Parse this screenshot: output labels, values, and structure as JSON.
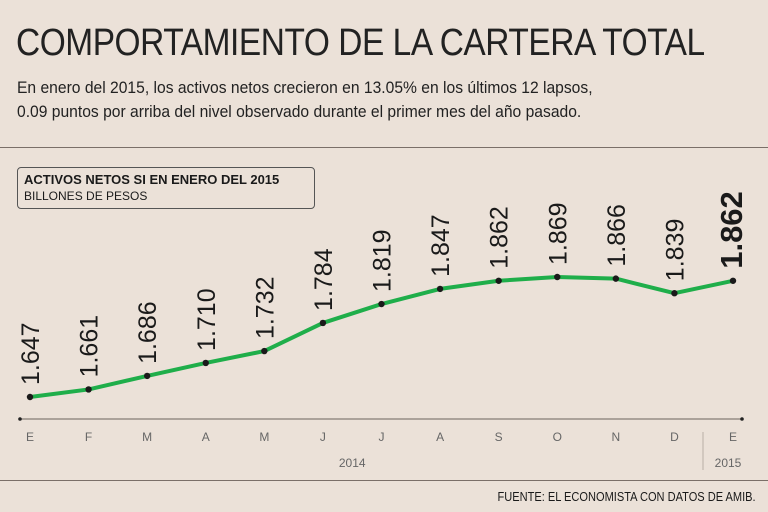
{
  "title": "COMPORTAMIENTO DE LA CARTERA TOTAL",
  "subtitle_lines": [
    "En enero del 2015, los activos netos crecieron en 13.05% en los últimos 12 lapsos,",
    "0.09 puntos por arriba del nivel observado durante el primer mes del año pasado."
  ],
  "source": "FUENTE: EL ECONOMISTA CON DATOS DE AMIB.",
  "colors": {
    "line": "#1fae4a",
    "background": "#ebe1d8",
    "points": "#1a1a1a"
  },
  "chart_data": {
    "type": "line",
    "title": "ACTIVOS NETOS SI EN ENERO DEL 2015",
    "ylabel": "BILLONES DE PESOS",
    "categories": [
      "E",
      "F",
      "M",
      "A",
      "M",
      "J",
      "J",
      "A",
      "S",
      "O",
      "N",
      "D",
      "E"
    ],
    "values": [
      1.647,
      1.661,
      1.686,
      1.71,
      1.732,
      1.784,
      1.819,
      1.847,
      1.862,
      1.869,
      1.866,
      1.839,
      1.862
    ],
    "labels": [
      "1.647",
      "1.661",
      "1.686",
      "1.710",
      "1.732",
      "1.784",
      "1.819",
      "1.847",
      "1.862",
      "1.869",
      "1.866",
      "1.839",
      "1.862"
    ],
    "year_groups": [
      {
        "label": "2014",
        "from": 0,
        "to": 11
      },
      {
        "label": "2015",
        "from": 12,
        "to": 12
      }
    ],
    "ylim": [
      1.647,
      1.869
    ],
    "grid": false,
    "legend": "top-left"
  }
}
